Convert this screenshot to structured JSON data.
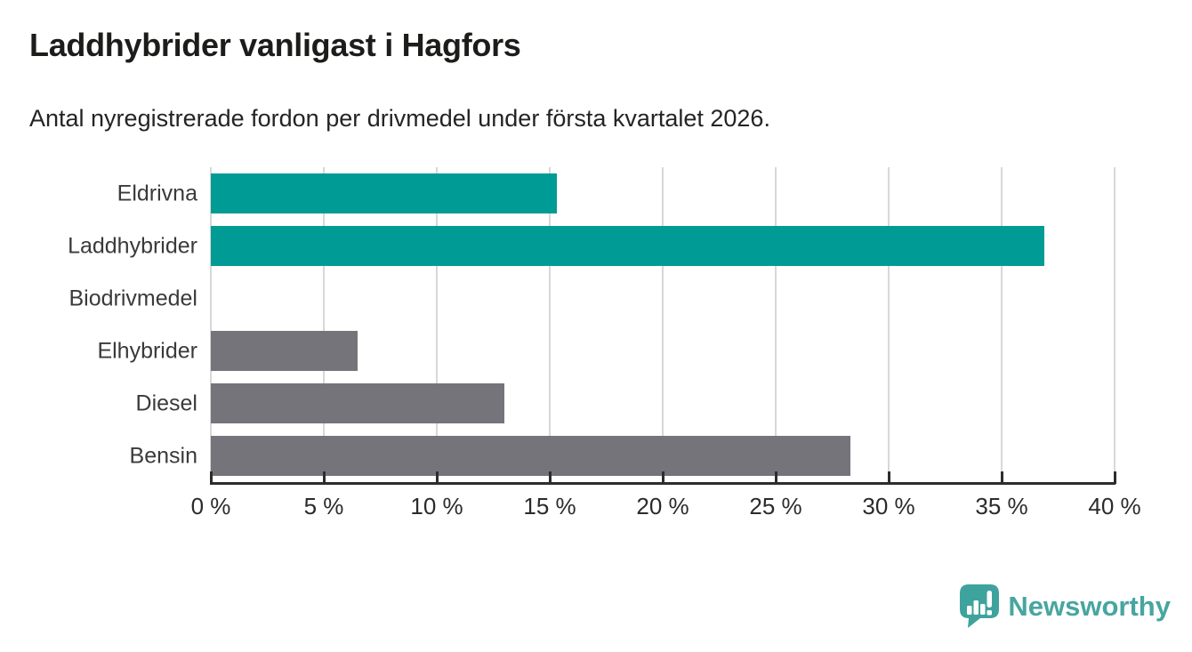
{
  "chart_data": {
    "type": "bar",
    "orientation": "horizontal",
    "title": "Laddhybrider vanligast i Hagfors",
    "subtitle": "Antal nyregistrerade fordon per drivmedel under första kvartalet 2026.",
    "categories": [
      "Eldrivna",
      "Laddhybrider",
      "Biodrivmedel",
      "Elhybrider",
      "Diesel",
      "Bensin"
    ],
    "values": [
      15.3,
      36.9,
      0,
      6.5,
      13,
      28.3
    ],
    "unit": "%",
    "bar_colors": [
      "#009b94",
      "#009b94",
      "#009b94",
      "#76747b",
      "#76747b",
      "#76747b"
    ],
    "xlim": [
      0,
      40
    ],
    "x_ticks": [
      0,
      5,
      10,
      15,
      20,
      25,
      30,
      35,
      40
    ],
    "x_tick_labels": [
      "0 %",
      "5 %",
      "10 %",
      "15 %",
      "20 %",
      "25 %",
      "30 %",
      "35 %",
      "40 %"
    ],
    "grid": "vertical",
    "legend": "none"
  },
  "colors": {
    "accent_teal": "#009b94",
    "neutral_gray": "#76747b",
    "gridline": "#d8d8d8",
    "axis": "#2d2d2d",
    "logo_teal": "#48a5a0"
  },
  "logo": {
    "text": "Newsworthy"
  }
}
